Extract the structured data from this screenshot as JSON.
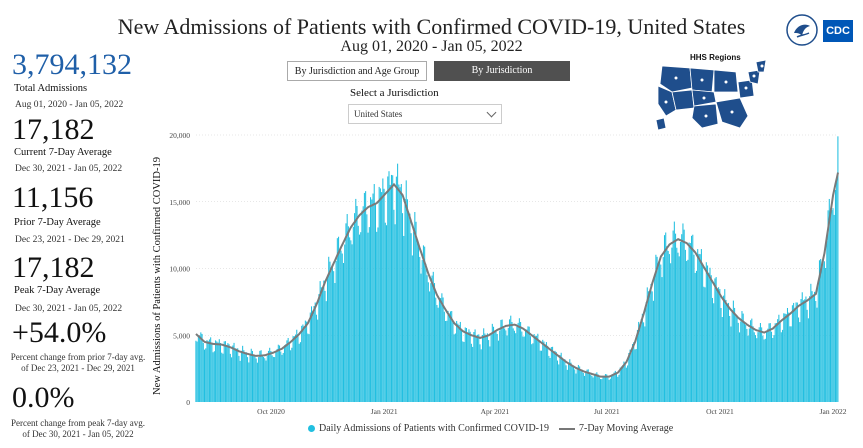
{
  "header": {
    "title": "New Admissions of Patients with Confirmed COVID-19, United States",
    "subtitle": "Aug 01, 2020 - Jan 05, 2022"
  },
  "stats": {
    "total": {
      "value": "3,794,132",
      "label": "Total Admissions",
      "range": "Aug 01, 2020 - Jan 05, 2022"
    },
    "current": {
      "value": "17,182",
      "label": "Current 7-Day Average",
      "range": "Dec 30, 2021 - Jan 05, 2022"
    },
    "prior": {
      "value": "11,156",
      "label": "Prior 7-Day Average",
      "range": "Dec 23, 2021 - Dec 29, 2021"
    },
    "peak": {
      "value": "17,182",
      "label": "Peak 7-Day Average",
      "range": "Dec 30, 2021 - Jan 05, 2022"
    },
    "pct_prior": {
      "value": "+54.0%",
      "note": "Percent change from prior 7-day avg. of Dec 23, 2021 - Dec 29, 2021"
    },
    "pct_peak": {
      "value": "0.0%",
      "note": "Percent change from peak 7-day avg. of Dec 30, 2021 - Jan 05, 2022"
    }
  },
  "tabs": {
    "age_group": "By Jurisdiction and Age Group",
    "jurisdiction": "By Jurisdiction"
  },
  "filter": {
    "label": "Select a Jurisdiction",
    "value": "United States"
  },
  "logos": {
    "cdc": "CDC",
    "hhs_icon": "hhs-eagle-icon"
  },
  "map": {
    "title": "HHS Regions",
    "color": "#1f4e8c"
  },
  "colors": {
    "bar": "#21bfe0",
    "line": "#7a7a7a",
    "select_tab": "#505050"
  },
  "legend": {
    "bars": "Daily Admissions of Patients with Confirmed COVID-19",
    "line": "7-Day Moving Average"
  },
  "chart_data": {
    "type": "bar",
    "title": "",
    "xlabel": "",
    "ylabel": "New Admissions of Patients with Confirmed COVID-19",
    "ylim": [
      0,
      20000
    ],
    "yticks": [
      0,
      5000,
      10000,
      15000,
      20000
    ],
    "ytick_labels": [
      "0",
      "5,000",
      "10,000",
      "15,000",
      "20,000"
    ],
    "xticks": [
      "Oct 2020",
      "Jan 2021",
      "Apr 2021",
      "Jul 2021",
      "Oct 2021",
      "Jan 2022"
    ],
    "grid": true,
    "series": [
      {
        "name": "7-Day Moving Average",
        "type": "line",
        "weeks": [
          "2020-08-01",
          "2020-08-08",
          "2020-08-15",
          "2020-08-22",
          "2020-08-29",
          "2020-09-05",
          "2020-09-12",
          "2020-09-19",
          "2020-09-26",
          "2020-10-03",
          "2020-10-10",
          "2020-10-17",
          "2020-10-24",
          "2020-10-31",
          "2020-11-07",
          "2020-11-14",
          "2020-11-21",
          "2020-11-28",
          "2020-12-05",
          "2020-12-12",
          "2020-12-19",
          "2020-12-26",
          "2021-01-02",
          "2021-01-09",
          "2021-01-16",
          "2021-01-23",
          "2021-01-30",
          "2021-02-06",
          "2021-02-13",
          "2021-02-20",
          "2021-02-27",
          "2021-03-06",
          "2021-03-13",
          "2021-03-20",
          "2021-03-27",
          "2021-04-03",
          "2021-04-10",
          "2021-04-17",
          "2021-04-24",
          "2021-05-01",
          "2021-05-08",
          "2021-05-15",
          "2021-05-22",
          "2021-05-29",
          "2021-06-05",
          "2021-06-12",
          "2021-06-19",
          "2021-06-26",
          "2021-07-03",
          "2021-07-10",
          "2021-07-17",
          "2021-07-24",
          "2021-07-31",
          "2021-08-07",
          "2021-08-14",
          "2021-08-21",
          "2021-08-28",
          "2021-09-04",
          "2021-09-11",
          "2021-09-18",
          "2021-09-25",
          "2021-10-02",
          "2021-10-09",
          "2021-10-16",
          "2021-10-23",
          "2021-10-30",
          "2021-11-06",
          "2021-11-13",
          "2021-11-20",
          "2021-11-27",
          "2021-12-04",
          "2021-12-11",
          "2021-12-18",
          "2021-12-25",
          "2022-01-01",
          "2022-01-05"
        ],
        "values": [
          5100,
          4500,
          4350,
          4300,
          4100,
          3800,
          3600,
          3450,
          3500,
          3700,
          4000,
          4500,
          5100,
          5900,
          7300,
          9000,
          10400,
          11800,
          13100,
          14000,
          14600,
          14900,
          15600,
          16300,
          15500,
          13500,
          11500,
          9600,
          8000,
          6900,
          5900,
          5300,
          5000,
          4800,
          5000,
          5400,
          5700,
          5800,
          5500,
          5000,
          4500,
          4000,
          3500,
          3000,
          2600,
          2300,
          2100,
          1900,
          1900,
          2200,
          3000,
          4500,
          6600,
          8900,
          10900,
          11800,
          12200,
          11900,
          11200,
          10100,
          9000,
          7900,
          7000,
          6300,
          5800,
          5400,
          5200,
          5500,
          6100,
          6600,
          7200,
          7600,
          8100,
          11156,
          15500,
          17182
        ]
      },
      {
        "name": "Daily Admissions of Patients with Confirmed COVID-19",
        "type": "bar",
        "note": "daily bars follow the 7-day average with day-to-day variation; peak daily value near 19,900 on Jan 05, 2022"
      }
    ]
  }
}
